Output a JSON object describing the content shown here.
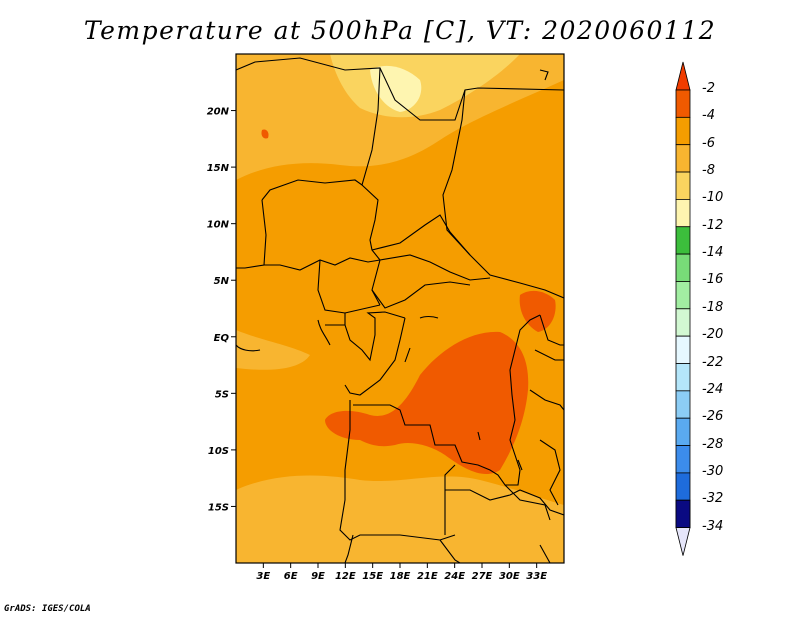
{
  "title": "Temperature at 500hPa [C], VT: 2020060112",
  "credit": "GrADS: IGES/COLA",
  "map": {
    "lon_range": [
      0,
      36
    ],
    "lat_range": [
      -20,
      25
    ],
    "lat_ticks": [
      {
        "value": 20,
        "label": "20N"
      },
      {
        "value": 15,
        "label": "15N"
      },
      {
        "value": 10,
        "label": "10N"
      },
      {
        "value": 5,
        "label": "5N"
      },
      {
        "value": 0,
        "label": "EQ"
      },
      {
        "value": -5,
        "label": "5S"
      },
      {
        "value": -10,
        "label": "10S"
      },
      {
        "value": -15,
        "label": "15S"
      }
    ],
    "lon_ticks": [
      {
        "value": 3,
        "label": "3E"
      },
      {
        "value": 6,
        "label": "6E"
      },
      {
        "value": 9,
        "label": "9E"
      },
      {
        "value": 12,
        "label": "12E"
      },
      {
        "value": 15,
        "label": "15E"
      },
      {
        "value": 18,
        "label": "18E"
      },
      {
        "value": 21,
        "label": "21E"
      },
      {
        "value": 24,
        "label": "24E"
      },
      {
        "value": 27,
        "label": "27E"
      },
      {
        "value": 30,
        "label": "30E"
      },
      {
        "value": 33,
        "label": "33E"
      }
    ]
  },
  "colorbar": {
    "levels": [
      "-2",
      "-4",
      "-6",
      "-8",
      "-10",
      "-12",
      "-14",
      "-16",
      "-18",
      "-20",
      "-22",
      "-24",
      "-26",
      "-28",
      "-30",
      "-32",
      "-34"
    ],
    "colors": [
      "#f05a00",
      "#f59d00",
      "#f8b530",
      "#fad45f",
      "#fef5b0",
      "#3cbe3c",
      "#78dc78",
      "#a2eea2",
      "#d2f8d2",
      "#e6f8ff",
      "#b4e6fa",
      "#8ccdf5",
      "#5aaaf0",
      "#3c8ceb",
      "#1e6cdc",
      "#0a46b4",
      "#0a0a82",
      "#e6e6fa"
    ],
    "top_arrow_color": "#f03c00",
    "bottom_arrow_color": "#e6e6fa"
  },
  "fill_colors": {
    "main": "#f59d00",
    "warm": "#f05a00",
    "cool": "#f8b530",
    "coldest": "#fad45f",
    "pale": "#fef5b0"
  }
}
